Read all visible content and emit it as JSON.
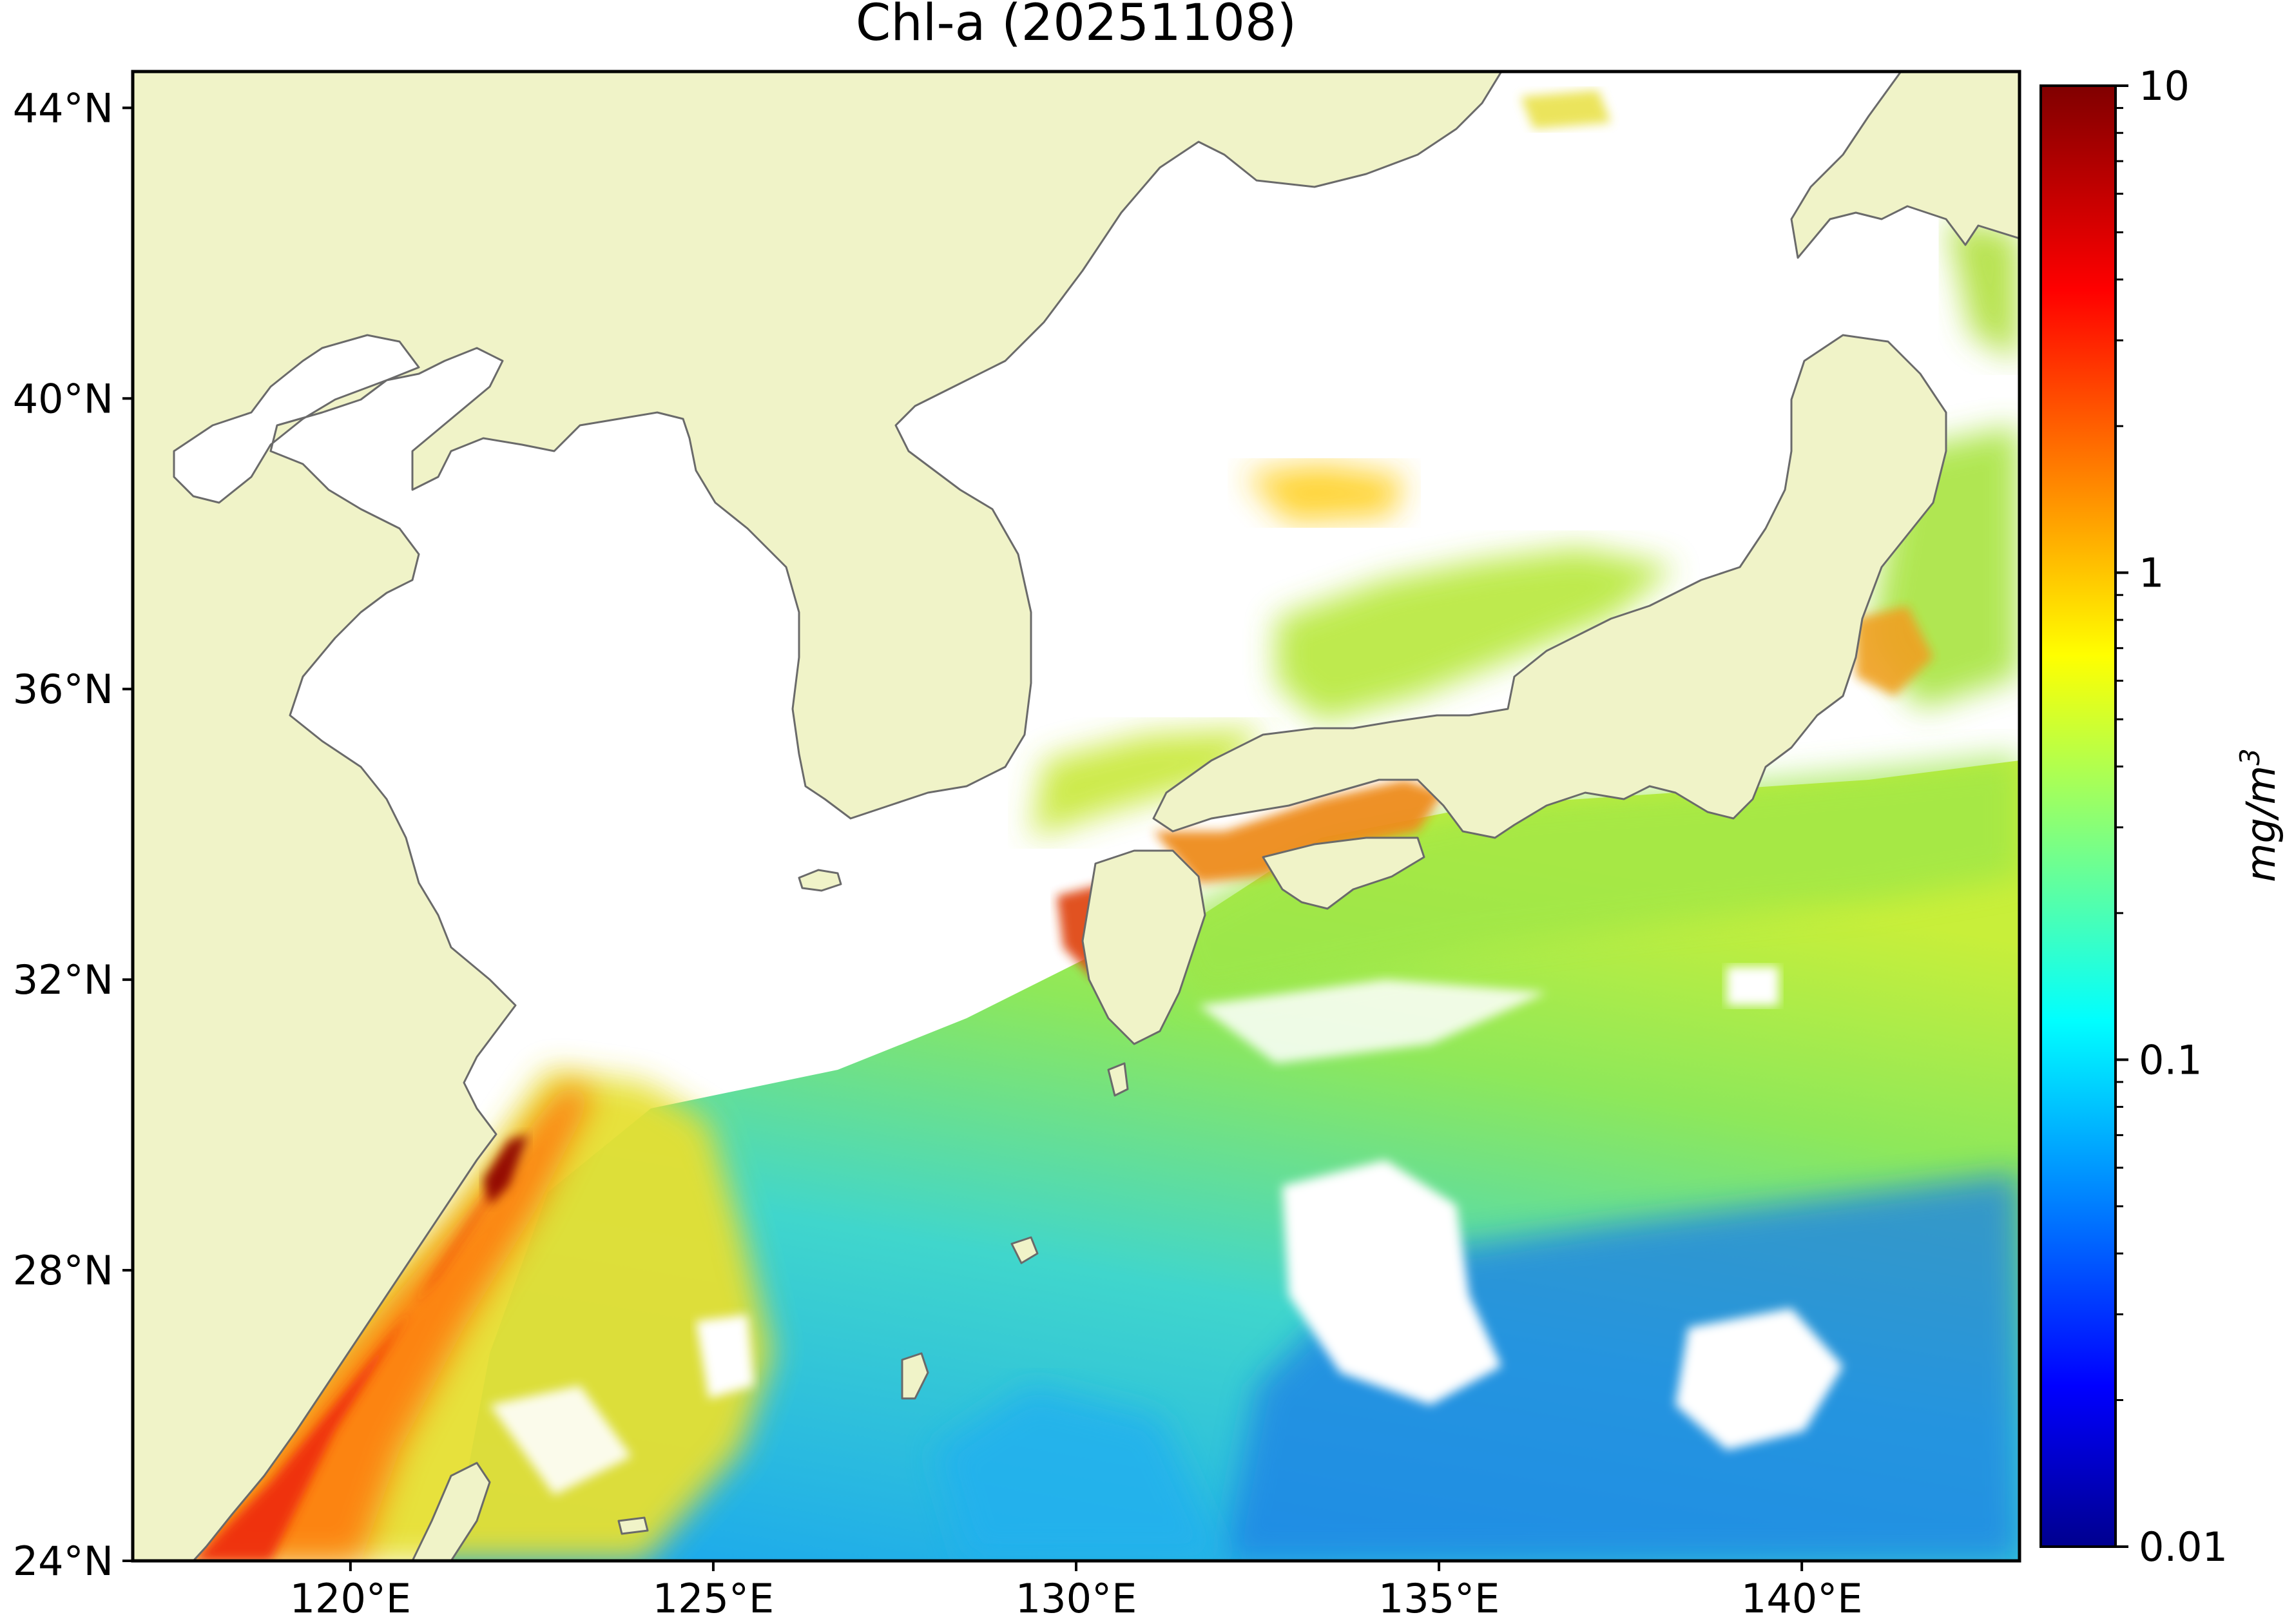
{
  "title": "Chl-a (20251108)",
  "map": {
    "lon_range": [
      117,
      143
    ],
    "lat_range": [
      24,
      44.5
    ],
    "lat_ticks": [
      {
        "value": 24,
        "label": "24°N"
      },
      {
        "value": 28,
        "label": "28°N"
      },
      {
        "value": 32,
        "label": "32°N"
      },
      {
        "value": 36,
        "label": "36°N"
      },
      {
        "value": 40,
        "label": "40°N"
      },
      {
        "value": 44,
        "label": "44°N"
      }
    ],
    "lon_ticks": [
      {
        "value": 120,
        "label": "120°E"
      },
      {
        "value": 125,
        "label": "125°E"
      },
      {
        "value": 130,
        "label": "130°E"
      },
      {
        "value": 135,
        "label": "135°E"
      },
      {
        "value": 140,
        "label": "140°E"
      }
    ],
    "land_color": "#f0f3c8",
    "coast_color": "#6a6a6a",
    "no_data_color": "#ffffff"
  },
  "colorbar": {
    "label": "mg/m3",
    "scale": "log",
    "colormap": "jet",
    "range": [
      0.01,
      10
    ],
    "ticks": [
      {
        "value": 10,
        "label": "10"
      },
      {
        "value": 1,
        "label": "1"
      },
      {
        "value": 0.1,
        "label": "0.1"
      },
      {
        "value": 0.01,
        "label": "0.01"
      }
    ]
  }
}
